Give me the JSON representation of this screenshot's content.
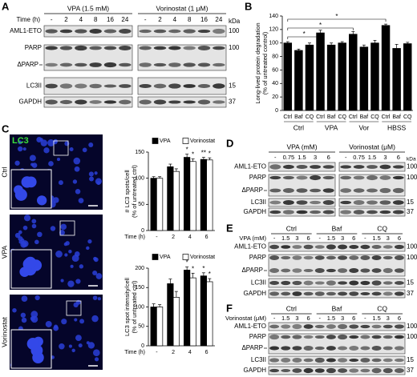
{
  "A": {
    "label": "A",
    "treatments": [
      "VPA (1.5 mM)",
      "Vorinostat (1 μM)"
    ],
    "lane_title": "Time (h)",
    "lanes": [
      "-",
      "2",
      "4",
      "8",
      "16",
      "24"
    ],
    "rows": [
      "AML1-ETO",
      "PARP",
      "LC3II",
      "GAPDH"
    ],
    "cleaved": "ΔPARP",
    "kda_title": "kDa",
    "kda": [
      100,
      100,
      15,
      37
    ]
  },
  "C": {
    "label": "C",
    "stain": "LC3",
    "conditions": [
      "Ctrl",
      "VPA",
      "Vorinostat"
    ]
  },
  "D": {
    "label": "D",
    "treatments": [
      "VPA (mM)",
      "Vorinostat (μM)"
    ],
    "lanes": [
      "-",
      "0.75",
      "1.5",
      "3",
      "6"
    ],
    "rows": [
      "AML1-ETO",
      "PARP",
      "LC3II",
      "GAPDH"
    ],
    "cleaved": "ΔPARP",
    "kda_title": "kDa",
    "kda": [
      100,
      100,
      15,
      37
    ]
  },
  "E": {
    "label": "E",
    "groups": [
      "Ctrl",
      "Baf",
      "CQ"
    ],
    "lane_title": "VPA (mM)",
    "lanes": [
      "-",
      "1.5",
      "3",
      "6"
    ],
    "rows": [
      "AML1-ETO",
      "PARP",
      "LC3II",
      "GAPDH"
    ],
    "cleaved": "ΔPARP",
    "kda": [
      100,
      100,
      15,
      37
    ]
  },
  "F": {
    "label": "F",
    "groups": [
      "Ctrl",
      "Baf",
      "CQ"
    ],
    "lane_title": "Vorinostat (μM)",
    "lanes": [
      "-",
      "1.5",
      "3",
      "6"
    ],
    "rows": [
      "AML1-ETO",
      "PARP",
      "LC3II",
      "GAPDH"
    ],
    "cleaved": "ΔPARP",
    "kda": [
      100,
      100,
      15,
      37
    ]
  },
  "chart_data": [
    {
      "type": "bar",
      "panel_label": "B",
      "ylabel": [
        "Long-lived protein degradation",
        "(% of untreated control)"
      ],
      "categories": [
        "Ctrl",
        "Baf",
        "CQ",
        "Ctrl",
        "Baf",
        "CQ",
        "Ctrl",
        "Baf",
        "CQ",
        "Ctrl",
        "Baf",
        "CQ"
      ],
      "groups": [
        "Ctrl",
        "VPA",
        "Vor",
        "HBSS"
      ],
      "values": [
        100,
        89,
        97,
        115,
        97,
        100,
        113,
        94,
        100,
        126,
        92,
        99
      ],
      "errors": [
        2,
        2,
        3,
        4,
        3,
        2,
        4,
        3,
        4,
        2,
        6,
        2
      ],
      "color": "#000000",
      "ylim": [
        0,
        140
      ],
      "yticks": [
        0,
        20,
        40,
        60,
        80,
        100,
        120,
        140
      ],
      "annotations": [
        "*",
        "*",
        "*"
      ]
    },
    {
      "type": "bar",
      "ylabel": [
        "# LC3 spots/cell",
        "(% of untreated ctrl)"
      ],
      "xlabel": "Time (h)",
      "categories": [
        "-",
        "2",
        "4",
        "6"
      ],
      "series": [
        {
          "name": "VPA",
          "color": "#000000",
          "values": [
            100,
            122,
            140,
            136
          ],
          "errors": [
            3,
            5,
            6,
            4
          ]
        },
        {
          "name": "Vorinostat",
          "color": "#ffffff",
          "values": [
            100,
            113,
            132,
            135
          ],
          "errors": [
            3,
            5,
            5,
            4
          ]
        }
      ],
      "ylim": [
        0,
        150
      ],
      "yticks": [
        0,
        50,
        100,
        150
      ],
      "annotations": [
        "*",
        "**",
        "*",
        "*"
      ]
    },
    {
      "type": "bar",
      "ylabel": [
        "LC3 spot intensity/cell",
        "(% of untreated ctrl)"
      ],
      "xlabel": "Time (h)",
      "categories": [
        "-",
        "2",
        "4",
        "6"
      ],
      "series": [
        {
          "name": "VPA",
          "color": "#000000",
          "values": [
            100,
            160,
            195,
            180
          ],
          "errors": [
            8,
            12,
            8,
            8
          ]
        },
        {
          "name": "Vorinostat",
          "color": "#ffffff",
          "values": [
            100,
            125,
            175,
            165
          ],
          "errors": [
            6,
            15,
            12,
            8
          ]
        }
      ],
      "ylim": [
        0,
        200
      ],
      "yticks": [
        0,
        50,
        100,
        150,
        200
      ],
      "annotations": [
        "*",
        "*",
        "*",
        "*"
      ]
    }
  ]
}
